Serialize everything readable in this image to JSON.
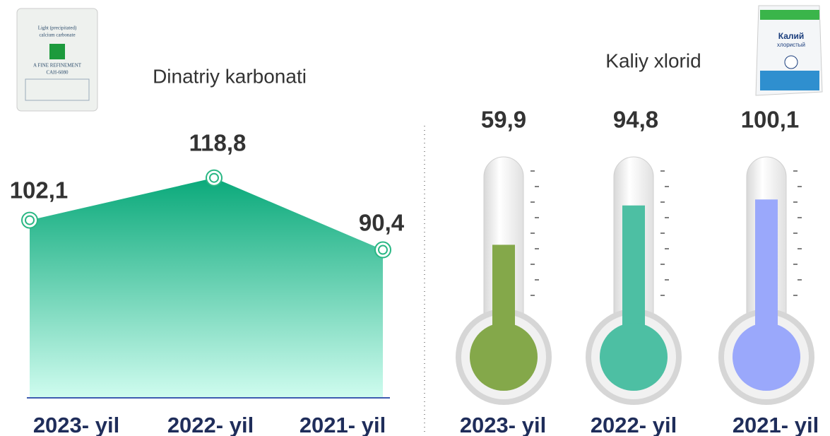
{
  "chart_data": [
    {
      "type": "area",
      "title": "Dinatriy karbonati",
      "categories": [
        "2023- yil",
        "2022- yil",
        "2021- yil"
      ],
      "values": [
        102.1,
        118.8,
        90.4
      ],
      "value_labels": [
        "102,1",
        "118,8",
        "90,4"
      ],
      "ylim": [
        32,
        136
      ],
      "color": "#0aa97a"
    },
    {
      "type": "thermometer",
      "title": "Kaliy xlorid",
      "categories": [
        "2023- yil",
        "2022- yil",
        "2021- yil"
      ],
      "values": [
        59.9,
        94.8,
        100.1
      ],
      "value_labels": [
        "59,9",
        "94,8",
        "100,1"
      ],
      "ylim": [
        0,
        136
      ],
      "colors": [
        "#84a84a",
        "#4dbfa3",
        "#9aa8fb"
      ]
    }
  ],
  "images": {
    "bag1": [
      "Light (precipitated)",
      "calcium carbonate",
      "A FINE REFINEMENT",
      "CAH-6080"
    ],
    "bag2": [
      "Калий",
      "хлористый"
    ]
  }
}
